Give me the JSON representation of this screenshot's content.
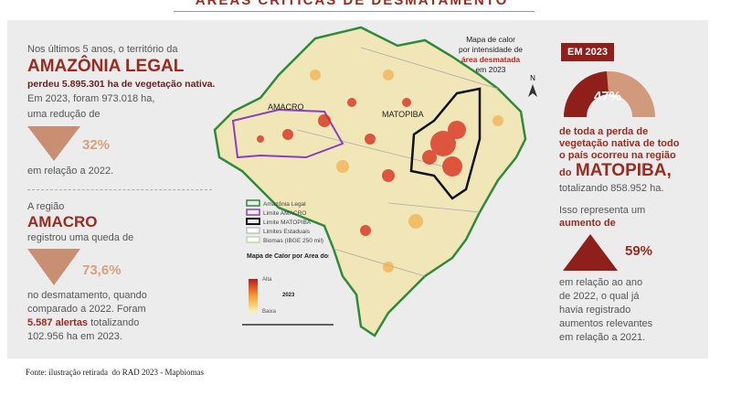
{
  "header": {
    "title": "ÁREAS CRÍTICAS DE DESMATAMENTO"
  },
  "left": {
    "amazonia": {
      "intro": "Nos últimos 5 anos, o território da",
      "region": "AMAZÔNIA LEGAL",
      "loss": "perdeu 5.895.301 ha de vegetação nativa.",
      "lines": [
        "Em 2023, foram 973.018 ha,",
        "uma redução de"
      ],
      "percent": "32%",
      "after": "em relação a 2022."
    },
    "amacro": {
      "intro": "A região",
      "region": "AMACRO",
      "drop": "registrou uma queda de",
      "percent": "73,6%",
      "lines": [
        "no desmatamento, quando",
        "comparado a 2022. Foram"
      ],
      "alerts": "5.587 alertas",
      "alerts_after": "totalizando",
      "total": "102.956 ha em 2023."
    }
  },
  "map": {
    "labels": [
      "AMACRO",
      "MATOPIBA"
    ],
    "annotation": {
      "lines": [
        "Mapa de calor",
        "por intensidade de"
      ],
      "highlight": "área desmatada",
      "year": "em 2023"
    },
    "north": "N",
    "legend": [
      "Amazônia Legal",
      "Limite AMACRO",
      "Limite MATOPIBA",
      "Limites Estaduais",
      "Biomas (IBGE 250 mil)"
    ],
    "heat_legend": {
      "title": "Mapa de Calor por Área dos Alertas",
      "high": "Alta",
      "year": "2023",
      "low": "Baixa"
    }
  },
  "right": {
    "badge": "EM 2023",
    "percent": "47%",
    "lines": [
      "de toda a perda de",
      "vegetação nativa de todo",
      "o país ocorreu na região"
    ],
    "prefix": "do",
    "region": "MATOPIBA,",
    "total": "totalizando 858.952 ha.",
    "increase_intro": "Isso representa um",
    "increase": "aumento de",
    "increase_percent": "59%",
    "after": [
      "em relação ao ano",
      "de 2022, o qual já",
      "havia registrado",
      "aumentos relevantes",
      "em relação a 2021."
    ]
  },
  "footer": {
    "source": "Fonte: ilustração retirada  do RAD 2023 - Mapbiomas"
  }
}
